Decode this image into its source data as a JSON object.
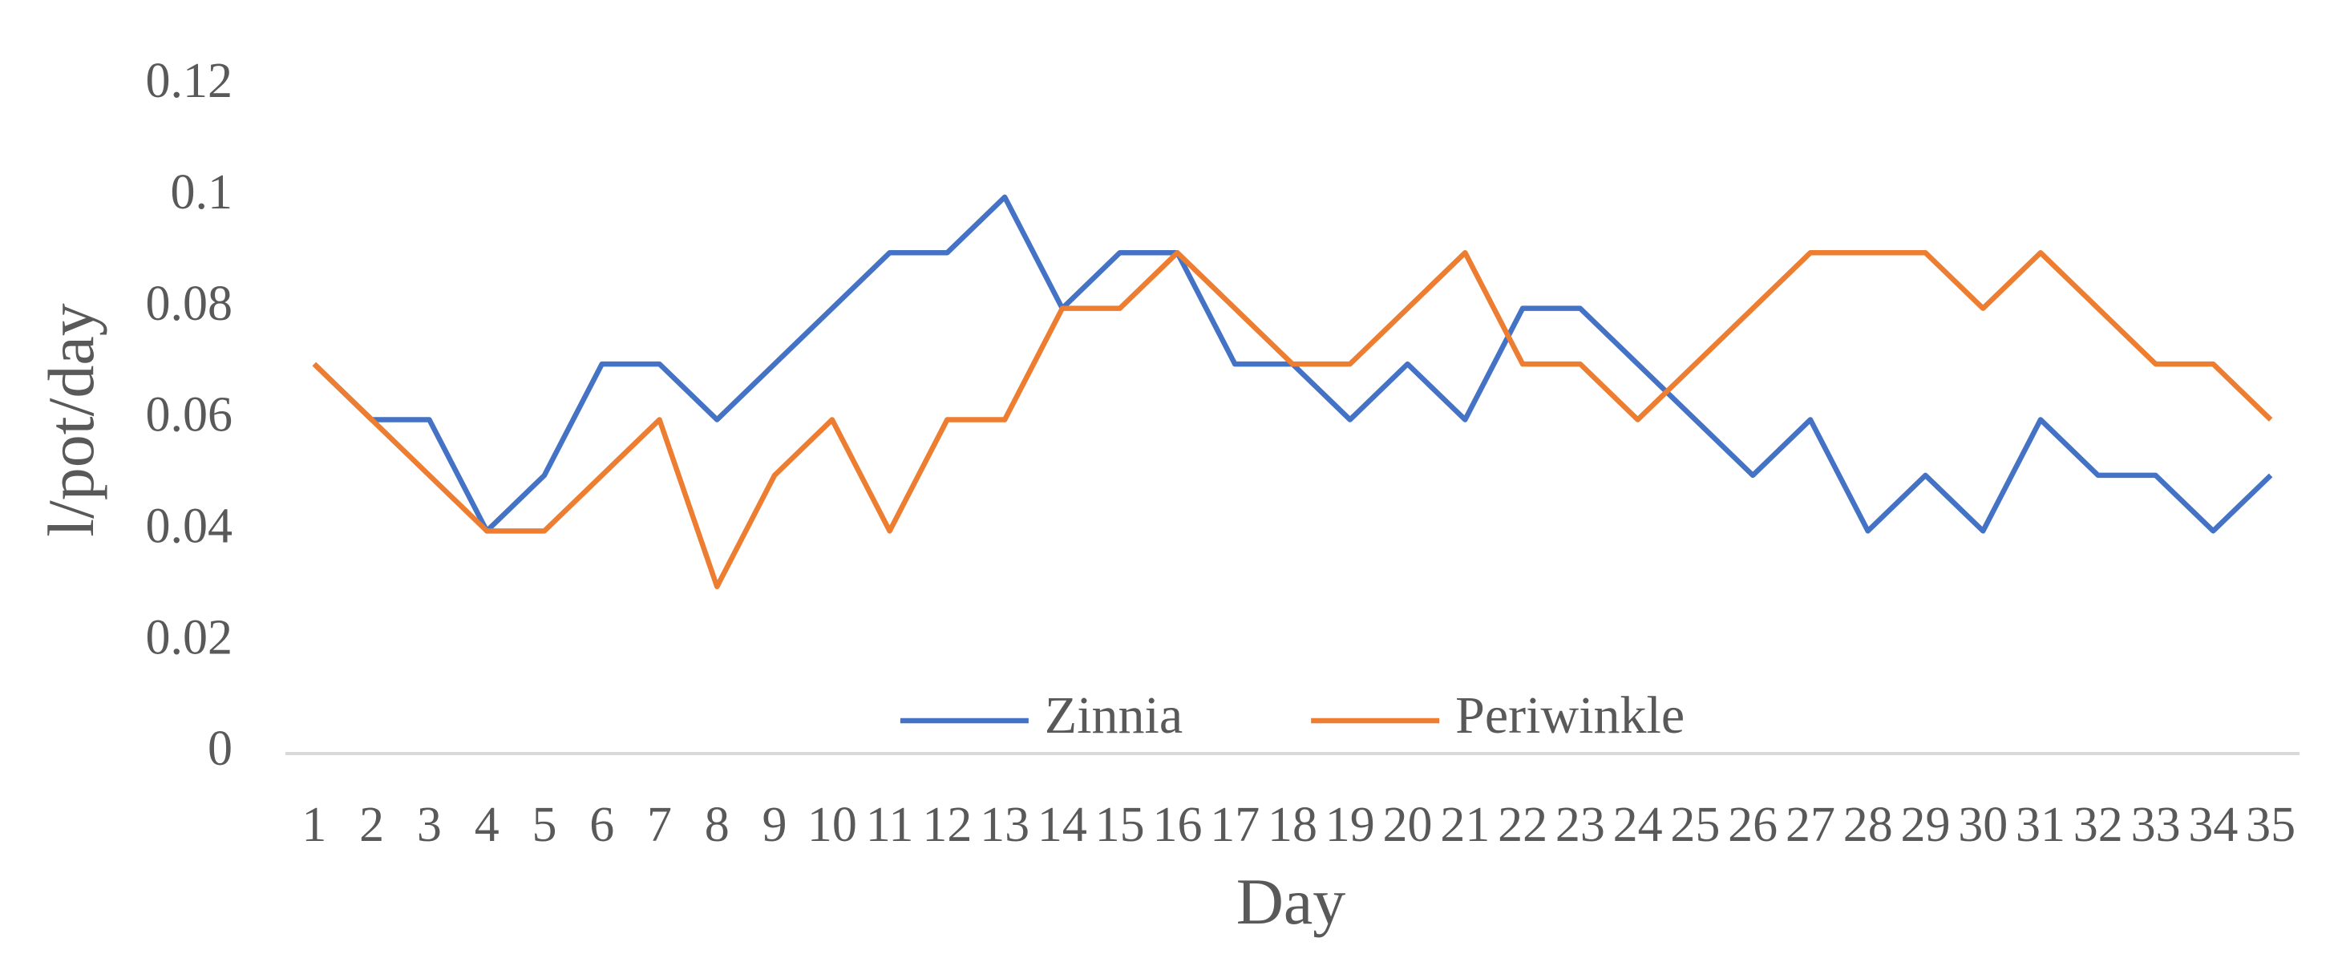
{
  "chart_data": {
    "type": "line",
    "x_label": "Day",
    "y_label": "l/pot/day",
    "categories": [
      "1",
      "2",
      "3",
      "4",
      "5",
      "6",
      "7",
      "8",
      "9",
      "10",
      "11",
      "12",
      "13",
      "14",
      "15",
      "16",
      "17",
      "18",
      "19",
      "20",
      "21",
      "22",
      "23",
      "24",
      "25",
      "26",
      "27",
      "28",
      "29",
      "30",
      "31",
      "32",
      "33",
      "34",
      "35"
    ],
    "series": [
      {
        "name": "Zinnia",
        "color": "#4472c4",
        "values": [
          0.07,
          0.06,
          0.06,
          0.04,
          0.05,
          0.07,
          0.07,
          0.06,
          0.07,
          0.08,
          0.09,
          0.09,
          0.1,
          0.08,
          0.09,
          0.09,
          0.07,
          0.07,
          0.06,
          0.07,
          0.06,
          0.08,
          0.08,
          0.07,
          0.06,
          0.05,
          0.06,
          0.04,
          0.05,
          0.04,
          0.06,
          0.05,
          0.05,
          0.04,
          0.05
        ]
      },
      {
        "name": "Periwinkle",
        "color": "#ed7d31",
        "values": [
          0.07,
          0.06,
          0.05,
          0.04,
          0.04,
          0.05,
          0.06,
          0.03,
          0.05,
          0.06,
          0.04,
          0.06,
          0.06,
          0.08,
          0.08,
          0.09,
          0.08,
          0.07,
          0.07,
          0.08,
          0.09,
          0.07,
          0.07,
          0.06,
          0.07,
          0.08,
          0.09,
          0.09,
          0.09,
          0.08,
          0.09,
          0.08,
          0.07,
          0.07,
          0.06
        ]
      }
    ],
    "ylim": [
      0,
      0.12
    ],
    "yticks": [
      0,
      0.02,
      0.04,
      0.06,
      0.08,
      0.1,
      0.12
    ],
    "grid": false,
    "legend": "bottom"
  }
}
